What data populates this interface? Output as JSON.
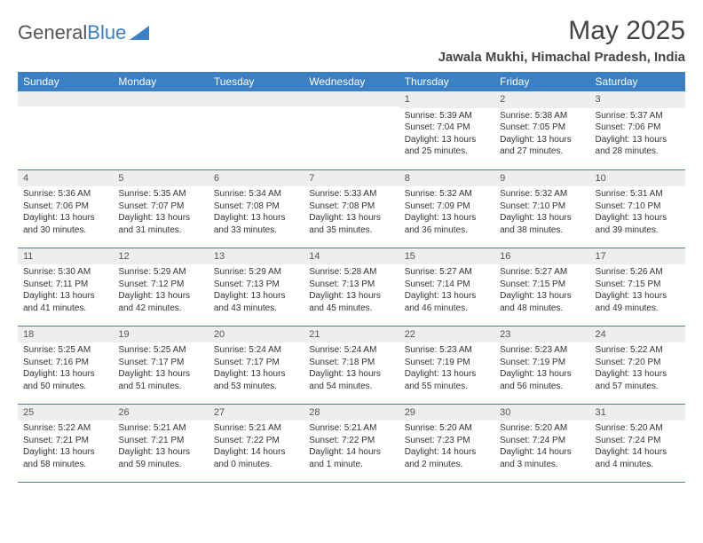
{
  "brand": {
    "part1": "General",
    "part2": "Blue"
  },
  "title": "May 2025",
  "location": "Jawala Mukhi, Himachal Pradesh, India",
  "colors": {
    "header_bg": "#3b7fc4",
    "daynum_bg": "#eceeef",
    "border": "#3b7fc4",
    "text": "#333333"
  },
  "layout": {
    "cols": 7,
    "rows": 5,
    "first_day_col_index": 4
  },
  "weekdays": [
    "Sunday",
    "Monday",
    "Tuesday",
    "Wednesday",
    "Thursday",
    "Friday",
    "Saturday"
  ],
  "days": [
    {
      "n": 1,
      "sunrise": "5:39 AM",
      "sunset": "7:04 PM",
      "daylight": "13 hours and 25 minutes."
    },
    {
      "n": 2,
      "sunrise": "5:38 AM",
      "sunset": "7:05 PM",
      "daylight": "13 hours and 27 minutes."
    },
    {
      "n": 3,
      "sunrise": "5:37 AM",
      "sunset": "7:06 PM",
      "daylight": "13 hours and 28 minutes."
    },
    {
      "n": 4,
      "sunrise": "5:36 AM",
      "sunset": "7:06 PM",
      "daylight": "13 hours and 30 minutes."
    },
    {
      "n": 5,
      "sunrise": "5:35 AM",
      "sunset": "7:07 PM",
      "daylight": "13 hours and 31 minutes."
    },
    {
      "n": 6,
      "sunrise": "5:34 AM",
      "sunset": "7:08 PM",
      "daylight": "13 hours and 33 minutes."
    },
    {
      "n": 7,
      "sunrise": "5:33 AM",
      "sunset": "7:08 PM",
      "daylight": "13 hours and 35 minutes."
    },
    {
      "n": 8,
      "sunrise": "5:32 AM",
      "sunset": "7:09 PM",
      "daylight": "13 hours and 36 minutes."
    },
    {
      "n": 9,
      "sunrise": "5:32 AM",
      "sunset": "7:10 PM",
      "daylight": "13 hours and 38 minutes."
    },
    {
      "n": 10,
      "sunrise": "5:31 AM",
      "sunset": "7:10 PM",
      "daylight": "13 hours and 39 minutes."
    },
    {
      "n": 11,
      "sunrise": "5:30 AM",
      "sunset": "7:11 PM",
      "daylight": "13 hours and 41 minutes."
    },
    {
      "n": 12,
      "sunrise": "5:29 AM",
      "sunset": "7:12 PM",
      "daylight": "13 hours and 42 minutes."
    },
    {
      "n": 13,
      "sunrise": "5:29 AM",
      "sunset": "7:13 PM",
      "daylight": "13 hours and 43 minutes."
    },
    {
      "n": 14,
      "sunrise": "5:28 AM",
      "sunset": "7:13 PM",
      "daylight": "13 hours and 45 minutes."
    },
    {
      "n": 15,
      "sunrise": "5:27 AM",
      "sunset": "7:14 PM",
      "daylight": "13 hours and 46 minutes."
    },
    {
      "n": 16,
      "sunrise": "5:27 AM",
      "sunset": "7:15 PM",
      "daylight": "13 hours and 48 minutes."
    },
    {
      "n": 17,
      "sunrise": "5:26 AM",
      "sunset": "7:15 PM",
      "daylight": "13 hours and 49 minutes."
    },
    {
      "n": 18,
      "sunrise": "5:25 AM",
      "sunset": "7:16 PM",
      "daylight": "13 hours and 50 minutes."
    },
    {
      "n": 19,
      "sunrise": "5:25 AM",
      "sunset": "7:17 PM",
      "daylight": "13 hours and 51 minutes."
    },
    {
      "n": 20,
      "sunrise": "5:24 AM",
      "sunset": "7:17 PM",
      "daylight": "13 hours and 53 minutes."
    },
    {
      "n": 21,
      "sunrise": "5:24 AM",
      "sunset": "7:18 PM",
      "daylight": "13 hours and 54 minutes."
    },
    {
      "n": 22,
      "sunrise": "5:23 AM",
      "sunset": "7:19 PM",
      "daylight": "13 hours and 55 minutes."
    },
    {
      "n": 23,
      "sunrise": "5:23 AM",
      "sunset": "7:19 PM",
      "daylight": "13 hours and 56 minutes."
    },
    {
      "n": 24,
      "sunrise": "5:22 AM",
      "sunset": "7:20 PM",
      "daylight": "13 hours and 57 minutes."
    },
    {
      "n": 25,
      "sunrise": "5:22 AM",
      "sunset": "7:21 PM",
      "daylight": "13 hours and 58 minutes."
    },
    {
      "n": 26,
      "sunrise": "5:21 AM",
      "sunset": "7:21 PM",
      "daylight": "13 hours and 59 minutes."
    },
    {
      "n": 27,
      "sunrise": "5:21 AM",
      "sunset": "7:22 PM",
      "daylight": "14 hours and 0 minutes."
    },
    {
      "n": 28,
      "sunrise": "5:21 AM",
      "sunset": "7:22 PM",
      "daylight": "14 hours and 1 minute."
    },
    {
      "n": 29,
      "sunrise": "5:20 AM",
      "sunset": "7:23 PM",
      "daylight": "14 hours and 2 minutes."
    },
    {
      "n": 30,
      "sunrise": "5:20 AM",
      "sunset": "7:24 PM",
      "daylight": "14 hours and 3 minutes."
    },
    {
      "n": 31,
      "sunrise": "5:20 AM",
      "sunset": "7:24 PM",
      "daylight": "14 hours and 4 minutes."
    }
  ],
  "labels": {
    "sunrise": "Sunrise:",
    "sunset": "Sunset:",
    "daylight": "Daylight:"
  }
}
